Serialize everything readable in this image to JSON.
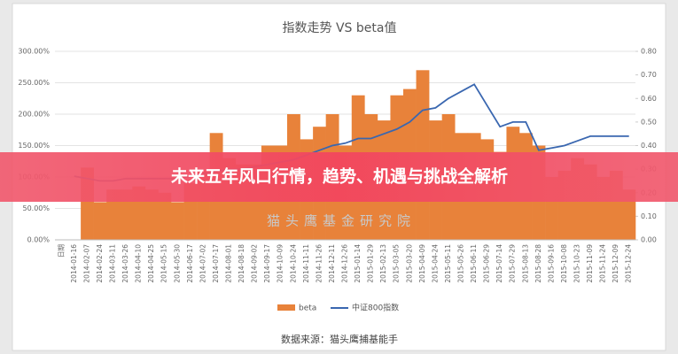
{
  "banner": {
    "title": "未来五年风口行情，趋势、机遇与挑战全解析"
  },
  "chart_data": {
    "type": "combo",
    "title": "指数走势 VS beta值",
    "categories": [
      "日期",
      "2014-01-16",
      "2014-02-07",
      "2014-02-24",
      "2014-03-11",
      "2014-03-26",
      "2014-04-10",
      "2014-04-25",
      "2014-05-15",
      "2014-05-30",
      "2014-06-17",
      "2014-07-02",
      "2014-07-17",
      "2014-08-01",
      "2014-08-18",
      "2014-09-02",
      "2014-09-17",
      "2014-10-09",
      "2014-10-24",
      "2014-11-11",
      "2014-11-26",
      "2014-12-11",
      "2014-12-26",
      "2015-01-14",
      "2015-01-29",
      "2015-02-13",
      "2015-03-05",
      "2015-03-20",
      "2015-04-09",
      "2015-04-24",
      "2015-05-11",
      "2015-05-26",
      "2015-06-11",
      "2015-06-29",
      "2015-07-14",
      "2015-07-29",
      "2015-08-13",
      "2015-08-28",
      "2015-09-16",
      "2015-10-08",
      "2015-10-23",
      "2015-11-09",
      "2015-11-24",
      "2015-12-09",
      "2015-12-24"
    ],
    "series": [
      {
        "name": "beta",
        "type": "bar",
        "color": "#e8823a",
        "values": [
          null,
          null,
          115,
          60,
          80,
          80,
          85,
          80,
          75,
          60,
          90,
          110,
          170,
          130,
          120,
          120,
          150,
          150,
          200,
          160,
          180,
          200,
          150,
          230,
          200,
          190,
          230,
          240,
          270,
          190,
          200,
          170,
          170,
          160,
          140,
          180,
          170,
          150,
          100,
          110,
          130,
          120,
          100,
          110,
          80
        ]
      },
      {
        "name": "中证800指数",
        "type": "line",
        "color": "#3a67b0",
        "axis": "y2",
        "values": [
          null,
          0.27,
          0.26,
          0.25,
          0.25,
          0.26,
          0.26,
          0.26,
          0.26,
          0.26,
          0.27,
          0.28,
          0.29,
          0.3,
          0.3,
          0.31,
          0.32,
          0.33,
          0.34,
          0.36,
          0.38,
          0.4,
          0.41,
          0.43,
          0.43,
          0.45,
          0.47,
          0.5,
          0.55,
          0.56,
          0.6,
          0.63,
          0.66,
          0.57,
          0.48,
          0.5,
          0.5,
          0.38,
          0.39,
          0.4,
          0.42,
          0.44,
          0.44,
          0.44,
          0.44
        ]
      }
    ],
    "ylim": [
      0,
      300
    ],
    "yticks": [
      {
        "value": 0,
        "label": "0.00%"
      },
      {
        "value": 50,
        "label": "50.00%"
      },
      {
        "value": 100,
        "label": "100.00%"
      },
      {
        "value": 150,
        "label": "150.00%"
      },
      {
        "value": 200,
        "label": "200.00%"
      },
      {
        "value": 250,
        "label": "250.00%"
      },
      {
        "value": 300,
        "label": "300.00%"
      }
    ],
    "y2lim": [
      0,
      0.8
    ],
    "y2ticks": [
      {
        "value": 0,
        "label": "0.00"
      },
      {
        "value": 0.1,
        "label": "0.10"
      },
      {
        "value": 0.2,
        "label": "0.20"
      },
      {
        "value": 0.3,
        "label": "0.30"
      },
      {
        "value": 0.4,
        "label": "0.40"
      },
      {
        "value": 0.5,
        "label": "0.50"
      },
      {
        "value": 0.6,
        "label": "0.60"
      },
      {
        "value": 0.7,
        "label": "0.70"
      },
      {
        "value": 0.8,
        "label": "0.80"
      }
    ],
    "grid": true,
    "watermark": "猫头鹰基金研究院",
    "source": "数据来源：猫头鹰捕基能手"
  }
}
